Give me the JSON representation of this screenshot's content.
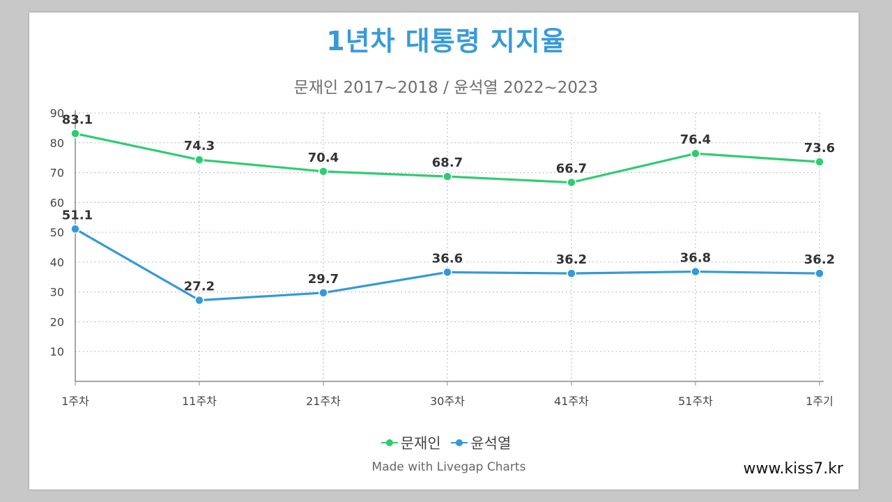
{
  "chart_data": {
    "type": "line",
    "title": "1년차 대통령 지지율",
    "subtitle": "문재인 2017~2018 / 윤석열 2022~2023",
    "categories": [
      "1주차",
      "11주차",
      "21주차",
      "30주차",
      "41주차",
      "51주차",
      "1주기"
    ],
    "y_ticks": [
      "10",
      "20",
      "30",
      "40",
      "50",
      "60",
      "70",
      "80",
      "90"
    ],
    "ylim": [
      0,
      90
    ],
    "grid": true,
    "legend_position": "bottom",
    "series": [
      {
        "name": "문재인",
        "color": "#2ecc71",
        "values": [
          83.1,
          74.3,
          70.4,
          68.7,
          66.7,
          76.4,
          73.6
        ],
        "labels": [
          "83.1",
          "74.3",
          "70.4",
          "68.7",
          "66.7",
          "76.4",
          "73.6"
        ]
      },
      {
        "name": "윤석열",
        "color": "#3498db",
        "values": [
          51.1,
          27.2,
          29.7,
          36.6,
          36.2,
          36.8,
          36.2
        ],
        "labels": [
          "51.1",
          "27.2",
          "29.7",
          "36.6",
          "36.2",
          "36.8",
          "36.2"
        ]
      }
    ]
  },
  "credit": "Made with Livegap Charts",
  "watermark": "www.kiss7.kr"
}
